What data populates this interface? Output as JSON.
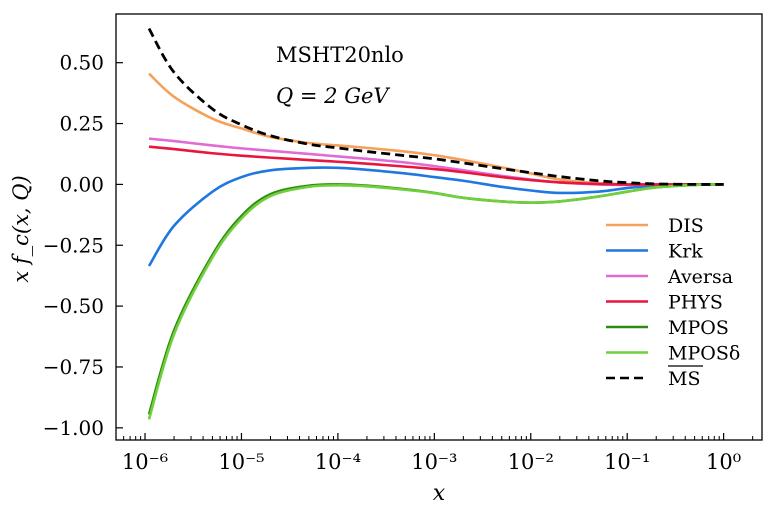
{
  "chart_data": {
    "type": "line",
    "xscale": "log",
    "xlim": [
      5e-07,
      2.5
    ],
    "ylim": [
      -1.05,
      0.7
    ],
    "xlabel": "x",
    "ylabel": "x f_c(x, Q)",
    "xticks": [
      1e-06,
      1e-05,
      0.0001,
      0.001,
      0.01,
      0.1,
      1
    ],
    "xtick_labels": [
      "10⁻⁶",
      "10⁻⁵",
      "10⁻⁴",
      "10⁻³",
      "10⁻²",
      "10⁻¹",
      "10⁰"
    ],
    "yticks": [
      -1.0,
      -0.75,
      -0.5,
      -0.25,
      0.0,
      0.25,
      0.5
    ],
    "ytick_labels": [
      "−1.00",
      "−0.75",
      "−0.50",
      "−0.25",
      "0.00",
      "0.25",
      "0.50"
    ],
    "annotations": [
      "MSHT20nlo",
      "Q = 2 GeV"
    ],
    "grid": false,
    "legend_position": "lower-right",
    "x": [
      1.1e-06,
      2e-06,
      5e-06,
      1e-05,
      2e-05,
      5e-05,
      0.0001,
      0.0002,
      0.0005,
      0.001,
      0.002,
      0.005,
      0.01,
      0.02,
      0.05,
      0.1,
      0.2,
      0.5,
      1.0
    ],
    "series": [
      {
        "name": "DIS",
        "color": "#f5a15a",
        "dash": false,
        "values": [
          0.455,
          0.36,
          0.27,
          0.23,
          0.195,
          0.17,
          0.16,
          0.15,
          0.135,
          0.12,
          0.1,
          0.07,
          0.045,
          0.02,
          0.005,
          0.0,
          0.0,
          0.0,
          0.0
        ]
      },
      {
        "name": "Krk",
        "color": "#1f77e0",
        "dash": false,
        "values": [
          -0.335,
          -0.17,
          -0.03,
          0.03,
          0.058,
          0.068,
          0.068,
          0.06,
          0.045,
          0.03,
          0.015,
          -0.01,
          -0.025,
          -0.035,
          -0.03,
          -0.015,
          -0.005,
          0.0,
          0.0
        ]
      },
      {
        "name": "Aversa",
        "color": "#e06ad6",
        "dash": false,
        "values": [
          0.188,
          0.178,
          0.16,
          0.148,
          0.138,
          0.125,
          0.115,
          0.105,
          0.09,
          0.075,
          0.058,
          0.035,
          0.02,
          0.008,
          0.0,
          -0.002,
          0.0,
          0.0,
          0.0
        ]
      },
      {
        "name": "PHYS",
        "color": "#e8163c",
        "dash": false,
        "values": [
          0.155,
          0.145,
          0.128,
          0.118,
          0.11,
          0.1,
          0.093,
          0.085,
          0.073,
          0.063,
          0.05,
          0.03,
          0.018,
          0.008,
          0.002,
          0.0,
          0.0,
          0.0,
          0.0
        ]
      },
      {
        "name": "MPOS",
        "color": "#2e8b10",
        "dash": false,
        "values": [
          -0.945,
          -0.6,
          -0.29,
          -0.13,
          -0.04,
          -0.005,
          0.0,
          -0.005,
          -0.02,
          -0.035,
          -0.055,
          -0.07,
          -0.075,
          -0.07,
          -0.05,
          -0.03,
          -0.012,
          -0.002,
          0.0
        ]
      },
      {
        "name": "MPOSδ",
        "color": "#6fcf3c",
        "dash": false,
        "values": [
          -0.965,
          -0.615,
          -0.3,
          -0.14,
          -0.048,
          -0.01,
          -0.004,
          -0.008,
          -0.022,
          -0.036,
          -0.055,
          -0.07,
          -0.075,
          -0.07,
          -0.05,
          -0.03,
          -0.012,
          -0.002,
          0.0
        ]
      },
      {
        "name": "MS-bar",
        "color": "#000000",
        "dash": true,
        "values": [
          0.64,
          0.46,
          0.31,
          0.245,
          0.2,
          0.165,
          0.15,
          0.135,
          0.118,
          0.105,
          0.088,
          0.065,
          0.048,
          0.032,
          0.015,
          0.007,
          0.002,
          0.0,
          0.0
        ]
      }
    ]
  }
}
